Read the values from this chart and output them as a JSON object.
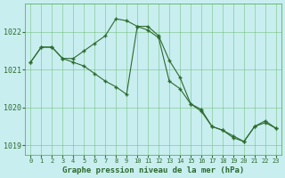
{
  "series1_x": [
    0,
    1,
    2,
    3,
    4,
    5,
    6,
    7,
    8,
    9,
    10,
    11,
    12,
    13,
    14,
    15,
    16,
    17,
    18,
    19,
    20,
    21,
    22,
    23
  ],
  "series1_y": [
    1021.2,
    1021.6,
    1021.6,
    1021.3,
    1021.3,
    1021.5,
    1021.7,
    1021.9,
    1022.35,
    1022.3,
    1022.15,
    1022.15,
    1021.9,
    1021.25,
    1020.8,
    1020.1,
    1019.9,
    1019.5,
    1019.4,
    1019.2,
    1019.1,
    1019.5,
    1019.6,
    1019.45
  ],
  "series2_x": [
    0,
    1,
    2,
    3,
    4,
    5,
    6,
    7,
    8,
    9,
    10,
    11,
    12,
    13,
    14,
    15,
    16,
    17,
    18,
    19,
    20,
    21,
    22,
    23
  ],
  "series2_y": [
    1021.2,
    1021.6,
    1021.6,
    1021.3,
    1021.2,
    1021.1,
    1020.9,
    1020.7,
    1020.55,
    1020.35,
    1022.15,
    1022.05,
    1021.85,
    1020.7,
    1020.5,
    1020.1,
    1019.95,
    1019.5,
    1019.4,
    1019.25,
    1019.1,
    1019.5,
    1019.65,
    1019.45
  ],
  "line_color": "#2d6a2d",
  "bg_color": "#c8eef0",
  "grid_color": "#5db35d",
  "xlabel": "Graphe pression niveau de la mer (hPa)",
  "ylim": [
    1018.75,
    1022.75
  ],
  "yticks": [
    1019,
    1020,
    1021,
    1022
  ],
  "xticks": [
    0,
    1,
    2,
    3,
    4,
    5,
    6,
    7,
    8,
    9,
    10,
    11,
    12,
    13,
    14,
    15,
    16,
    17,
    18,
    19,
    20,
    21,
    22,
    23
  ]
}
